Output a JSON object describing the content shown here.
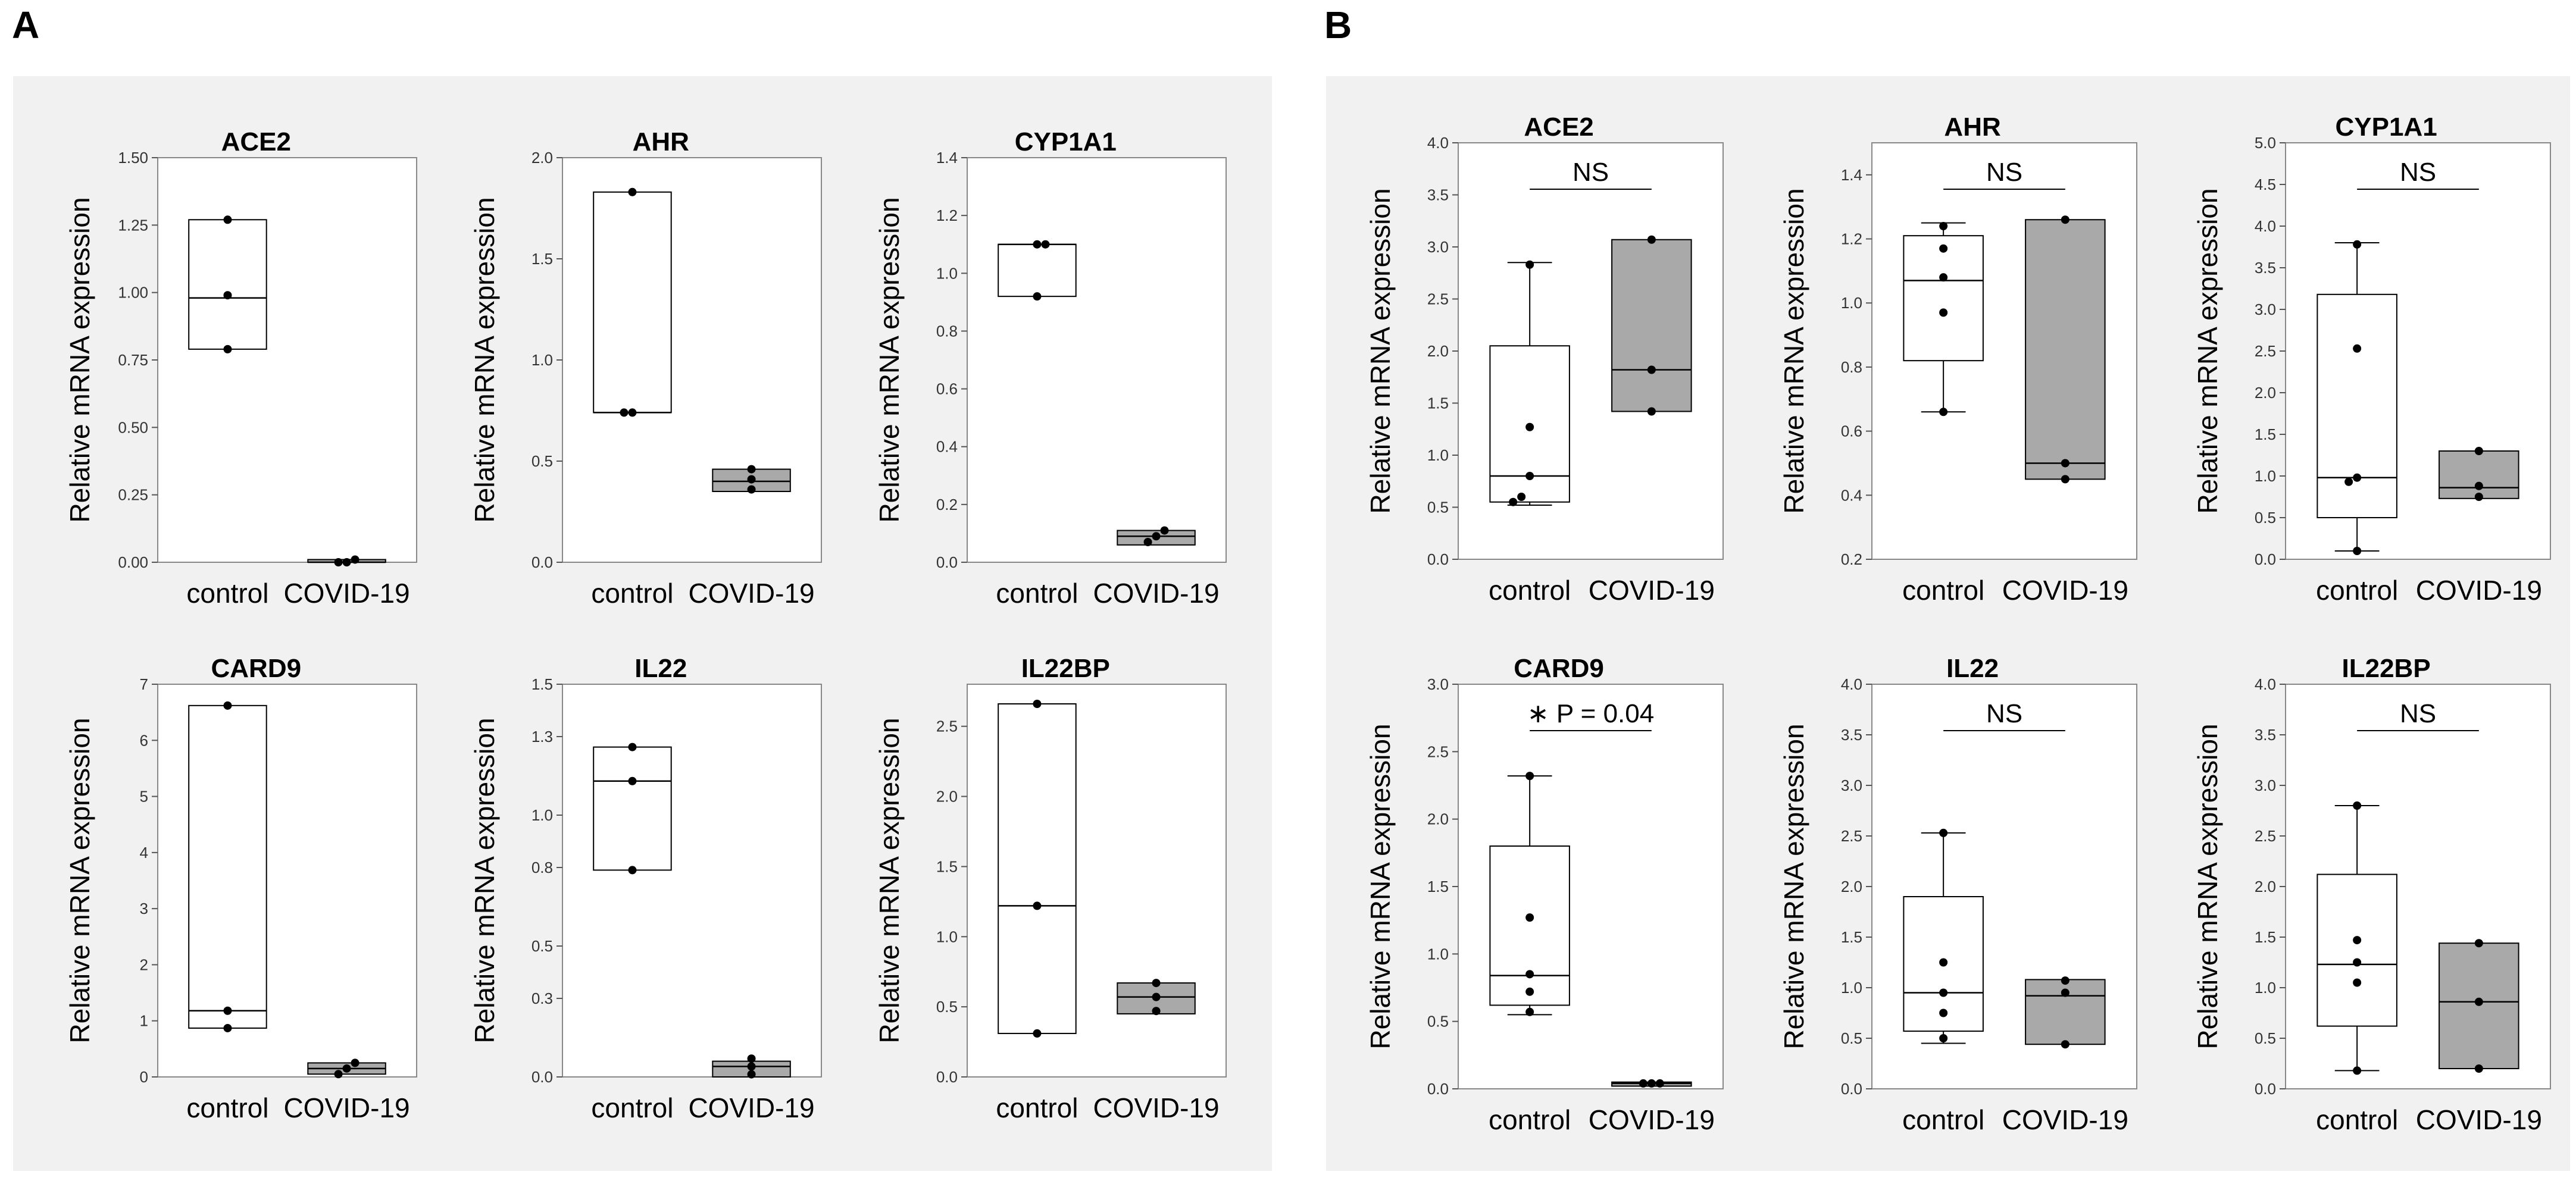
{
  "panels": [
    {
      "letter": "A"
    },
    {
      "letter": "B"
    }
  ],
  "colors": {
    "panel_bg": "#f1f1f1",
    "control_fill": "#ffffff",
    "covid_fill": "#a9a9a9",
    "line": "#000000"
  },
  "chart_data": [
    {
      "type": "box",
      "panel": "A",
      "title": "ACE2",
      "ylabel": "Relative mRNA expression",
      "categories": [
        "control",
        "COVID-19"
      ],
      "yticks": [
        "0.00",
        "0.25",
        "0.50",
        "0.75",
        "1.00",
        "1.25",
        "1.50"
      ],
      "ylim": [
        0,
        1.5
      ],
      "groups": [
        {
          "name": "control",
          "q1": 0.79,
          "median": 0.98,
          "q3": 1.27,
          "points": [
            0.79,
            0.99,
            1.27
          ]
        },
        {
          "name": "COVID-19",
          "q1": 0.0,
          "median": 0.0,
          "q3": 0.01,
          "points": [
            0.0,
            0.0,
            0.01
          ]
        }
      ]
    },
    {
      "type": "box",
      "panel": "A",
      "title": "AHR",
      "ylabel": "Relative mRNA expression",
      "categories": [
        "control",
        "COVID-19"
      ],
      "yticks": [
        "0.0",
        "0.5",
        "1.0",
        "1.5",
        "2.0"
      ],
      "ylim": [
        0,
        2.0
      ],
      "groups": [
        {
          "name": "control",
          "q1": 0.74,
          "median": 0.74,
          "q3": 1.83,
          "points": [
            0.74,
            0.74,
            1.83
          ]
        },
        {
          "name": "COVID-19",
          "q1": 0.35,
          "median": 0.4,
          "q3": 0.46,
          "points": [
            0.36,
            0.41,
            0.46
          ]
        }
      ]
    },
    {
      "type": "box",
      "panel": "A",
      "title": "CYP1A1",
      "ylabel": "Relative mRNA expression",
      "categories": [
        "control",
        "COVID-19"
      ],
      "yticks": [
        "0.0",
        "0.2",
        "0.4",
        "0.6",
        "0.8",
        "1.0",
        "1.2",
        "1.4"
      ],
      "ylim": [
        0,
        1.4
      ],
      "groups": [
        {
          "name": "control",
          "q1": 0.92,
          "median": 1.1,
          "q3": 1.1,
          "points": [
            0.92,
            1.1,
            1.1
          ]
        },
        {
          "name": "COVID-19",
          "q1": 0.06,
          "median": 0.09,
          "q3": 0.11,
          "points": [
            0.07,
            0.09,
            0.11
          ]
        }
      ]
    },
    {
      "type": "box",
      "panel": "A",
      "title": "CARD9",
      "ylabel": "Relative mRNA expression",
      "categories": [
        "control",
        "COVID-19"
      ],
      "yticks": [
        "0",
        "1",
        "2",
        "3",
        "4",
        "5",
        "6",
        "7"
      ],
      "ylim": [
        0,
        7
      ],
      "groups": [
        {
          "name": "control",
          "q1": 0.87,
          "median": 1.18,
          "q3": 6.62,
          "points": [
            0.87,
            1.18,
            6.62
          ]
        },
        {
          "name": "COVID-19",
          "q1": 0.05,
          "median": 0.15,
          "q3": 0.25,
          "points": [
            0.05,
            0.15,
            0.25
          ]
        }
      ]
    },
    {
      "type": "box",
      "panel": "A",
      "title": "IL22",
      "ylabel": "Relative mRNA expression",
      "categories": [
        "control",
        "COVID-19"
      ],
      "yticks": [
        "0.0",
        "0.3",
        "0.5",
        "0.8",
        "1.0",
        "1.3",
        "1.5"
      ],
      "ylim": [
        0,
        1.5
      ],
      "groups": [
        {
          "name": "control",
          "q1": 0.79,
          "median": 1.13,
          "q3": 1.26,
          "points": [
            0.79,
            1.13,
            1.26
          ]
        },
        {
          "name": "COVID-19",
          "q1": 0.0,
          "median": 0.04,
          "q3": 0.06,
          "points": [
            0.01,
            0.04,
            0.07
          ]
        }
      ]
    },
    {
      "type": "box",
      "panel": "A",
      "title": "IL22BP",
      "ylabel": "Relative mRNA expression",
      "categories": [
        "control",
        "COVID-19"
      ],
      "yticks": [
        "0.0",
        "0.5",
        "1.0",
        "1.5",
        "2.0",
        "2.5"
      ],
      "ylim": [
        0,
        2.8
      ],
      "groups": [
        {
          "name": "control",
          "q1": 0.31,
          "median": 1.22,
          "q3": 2.66,
          "points": [
            0.31,
            1.22,
            2.66
          ]
        },
        {
          "name": "COVID-19",
          "q1": 0.45,
          "median": 0.57,
          "q3": 0.67,
          "points": [
            0.47,
            0.57,
            0.67
          ]
        }
      ]
    },
    {
      "type": "box",
      "panel": "B",
      "title": "ACE2",
      "ylabel": "Relative mRNA expression",
      "categories": [
        "control",
        "COVID-19"
      ],
      "yticks": [
        "0.0",
        "0.5",
        "1.0",
        "1.5",
        "2.0",
        "2.5",
        "3.0",
        "3.5",
        "4.0"
      ],
      "ylim": [
        0,
        4.0
      ],
      "annotation": "NS",
      "groups": [
        {
          "name": "control",
          "q1": 0.55,
          "median": 0.8,
          "q3": 2.05,
          "wlow": 0.52,
          "whigh": 2.85,
          "points": [
            0.55,
            0.6,
            0.8,
            1.27,
            2.83
          ]
        },
        {
          "name": "COVID-19",
          "q1": 1.42,
          "median": 1.82,
          "q3": 3.07,
          "points": [
            1.42,
            1.82,
            3.07
          ]
        }
      ]
    },
    {
      "type": "box",
      "panel": "B",
      "title": "AHR",
      "ylabel": "Relative mRNA expression",
      "categories": [
        "control",
        "COVID-19"
      ],
      "yticks": [
        "0.2",
        "0.4",
        "0.6",
        "0.8",
        "1.0",
        "1.2",
        "1.4"
      ],
      "ylim": [
        0.2,
        1.5
      ],
      "annotation": "NS",
      "groups": [
        {
          "name": "control",
          "q1": 0.82,
          "median": 1.07,
          "q3": 1.21,
          "wlow": 0.66,
          "whigh": 1.25,
          "points": [
            0.66,
            0.97,
            1.08,
            1.17,
            1.24
          ]
        },
        {
          "name": "COVID-19",
          "q1": 0.45,
          "median": 0.5,
          "q3": 1.26,
          "points": [
            0.45,
            0.5,
            1.26
          ]
        }
      ]
    },
    {
      "type": "box",
      "panel": "B",
      "title": "CYP1A1",
      "ylabel": "Relative mRNA expression",
      "categories": [
        "control",
        "COVID-19"
      ],
      "yticks": [
        "0.0",
        "0.5",
        "1.0",
        "1.5",
        "2.0",
        "2.5",
        "3.0",
        "3.5",
        "4.0",
        "4.5",
        "5.0"
      ],
      "ylim": [
        0,
        5.0
      ],
      "annotation": "NS",
      "groups": [
        {
          "name": "control",
          "q1": 0.5,
          "median": 0.98,
          "q3": 3.18,
          "wlow": 0.1,
          "whigh": 3.8,
          "points": [
            0.1,
            0.93,
            0.98,
            2.53,
            3.78
          ]
        },
        {
          "name": "COVID-19",
          "q1": 0.73,
          "median": 0.86,
          "q3": 1.3,
          "points": [
            0.75,
            0.88,
            1.3
          ]
        }
      ]
    },
    {
      "type": "box",
      "panel": "B",
      "title": "CARD9",
      "ylabel": "Relative mRNA expression",
      "categories": [
        "control",
        "COVID-19"
      ],
      "yticks": [
        "0.0",
        "0.5",
        "1.0",
        "1.5",
        "2.0",
        "2.5",
        "3.0"
      ],
      "ylim": [
        0,
        3.0
      ],
      "annotation": "∗ P = 0.04",
      "groups": [
        {
          "name": "control",
          "q1": 0.62,
          "median": 0.84,
          "q3": 1.8,
          "wlow": 0.55,
          "whigh": 2.32,
          "points": [
            0.57,
            0.72,
            0.85,
            1.27,
            2.32
          ]
        },
        {
          "name": "COVID-19",
          "q1": 0.02,
          "median": 0.04,
          "q3": 0.05,
          "points": [
            0.04,
            0.04,
            0.04
          ]
        }
      ]
    },
    {
      "type": "box",
      "panel": "B",
      "title": "IL22",
      "ylabel": "Relative mRNA expression",
      "categories": [
        "control",
        "COVID-19"
      ],
      "yticks": [
        "0.0",
        "0.5",
        "1.0",
        "1.5",
        "2.0",
        "2.5",
        "3.0",
        "3.5",
        "4.0"
      ],
      "ylim": [
        0,
        4.0
      ],
      "annotation": "NS",
      "groups": [
        {
          "name": "control",
          "q1": 0.57,
          "median": 0.95,
          "q3": 1.9,
          "wlow": 0.45,
          "whigh": 2.53,
          "points": [
            0.5,
            0.75,
            0.95,
            1.25,
            2.53
          ]
        },
        {
          "name": "COVID-19",
          "q1": 0.44,
          "median": 0.92,
          "q3": 1.08,
          "points": [
            0.44,
            0.95,
            1.07
          ]
        }
      ]
    },
    {
      "type": "box",
      "panel": "B",
      "title": "IL22BP",
      "ylabel": "Relative mRNA expression",
      "categories": [
        "control",
        "COVID-19"
      ],
      "yticks": [
        "0.0",
        "0.5",
        "1.0",
        "1.5",
        "2.0",
        "2.5",
        "3.0",
        "3.5",
        "4.0"
      ],
      "ylim": [
        0,
        4.0
      ],
      "annotation": "NS",
      "groups": [
        {
          "name": "control",
          "q1": 0.62,
          "median": 1.23,
          "q3": 2.12,
          "wlow": 0.18,
          "whigh": 2.8,
          "points": [
            0.18,
            1.05,
            1.25,
            1.47,
            2.8
          ]
        },
        {
          "name": "COVID-19",
          "q1": 0.2,
          "median": 0.86,
          "q3": 1.44,
          "points": [
            0.2,
            0.86,
            1.44
          ]
        }
      ]
    }
  ]
}
